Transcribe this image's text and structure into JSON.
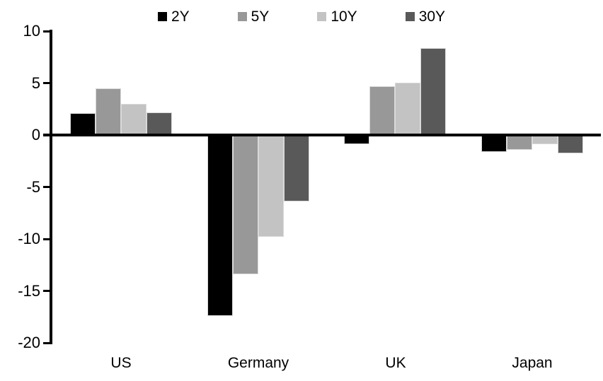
{
  "chart_data": {
    "type": "bar",
    "title": "",
    "categories": [
      "US",
      "Germany",
      "UK",
      "Japan"
    ],
    "series": [
      {
        "name": "2Y",
        "color": "#000000",
        "values": [
          2.1,
          -17.4,
          -0.9,
          -1.6
        ]
      },
      {
        "name": "5Y",
        "color": "#989898",
        "values": [
          4.5,
          -13.4,
          4.7,
          -1.4
        ]
      },
      {
        "name": "10Y",
        "color": "#C3C3C3",
        "values": [
          3.0,
          -9.8,
          5.0,
          -0.9
        ]
      },
      {
        "name": "30Y",
        "color": "#595959",
        "values": [
          2.2,
          -6.4,
          8.4,
          -1.8
        ]
      }
    ],
    "ylim": [
      -20,
      10
    ],
    "yticks": [
      10,
      5,
      0,
      -5,
      -10,
      -15,
      -20
    ],
    "xlabel": "",
    "ylabel": "",
    "legend_position": "top",
    "grid": false,
    "axis_color": "#000000",
    "background_color": "#FFFFFF"
  }
}
